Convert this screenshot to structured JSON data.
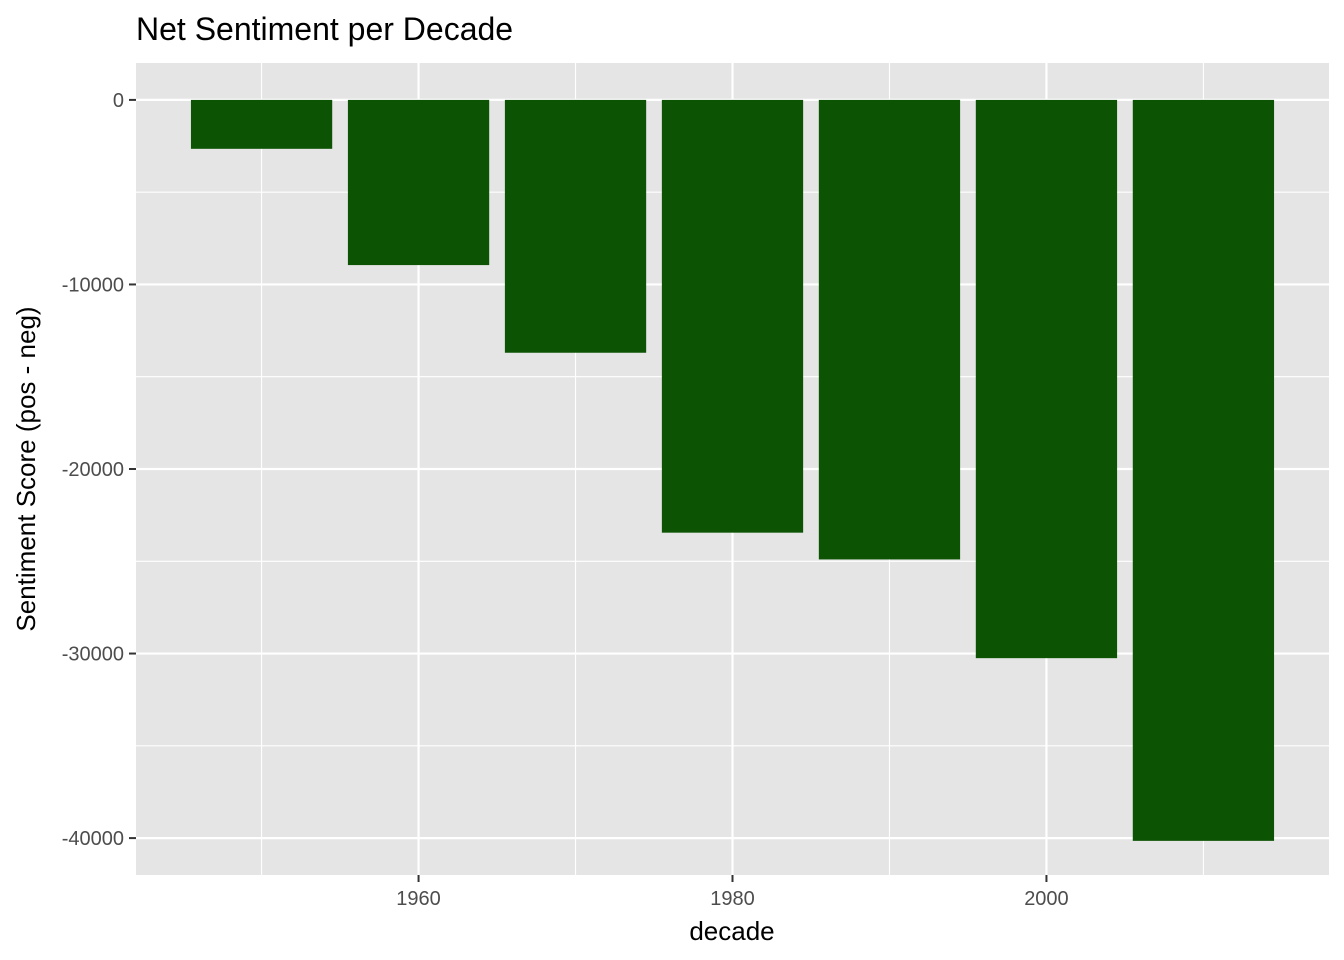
{
  "chart_data": {
    "type": "bar",
    "title": "Net Sentiment per Decade",
    "xlabel": "decade",
    "ylabel": "Sentiment Score (pos - neg)",
    "x": [
      1950,
      1960,
      1970,
      1980,
      1990,
      2000,
      2010
    ],
    "values": [
      -2650,
      -8950,
      -13700,
      -23450,
      -24900,
      -30250,
      -40150
    ],
    "xlim": [
      1942,
      2018
    ],
    "ylim": [
      -42000,
      2000
    ],
    "x_ticks": [
      1960,
      1980,
      2000
    ],
    "x_tick_labels": [
      "1960",
      "1980",
      "2000"
    ],
    "y_ticks": [
      0,
      -10000,
      -20000,
      -30000,
      -40000
    ],
    "y_tick_labels": [
      "0",
      "-10000",
      "-20000",
      "-30000",
      "-40000"
    ],
    "bar_color": "#0C5303",
    "panel_background": "#E5E5E5",
    "grid_color": "#FFFFFF",
    "grid": true,
    "legend": false
  }
}
